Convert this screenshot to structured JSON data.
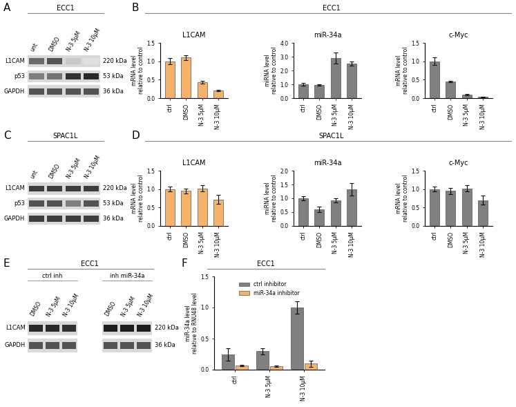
{
  "panels": [
    {
      "letter": "A",
      "header": "ECC1"
    },
    {
      "letter": "B",
      "header": "ECC1"
    },
    {
      "letter": "C",
      "header": "SPAC1L"
    },
    {
      "letter": "D",
      "header": "SPAC1L"
    },
    {
      "letter": "E",
      "header": "ECC1"
    },
    {
      "letter": "F",
      "header": "ECC1"
    }
  ],
  "blots": [
    {
      "panel": "A",
      "groups": [
        {
          "lanes": [
            "unt",
            "DMSO",
            "N-3 5μM",
            "N-3 10μM"
          ],
          "rows": [
            {
              "protein": "L1CAM",
              "size": "220 kDa",
              "intensity": [
                0.6,
                0.7,
                0.15,
                0.05
              ]
            },
            {
              "protein": "p53",
              "size": "53 kDa",
              "intensity": [
                0.5,
                0.55,
                0.85,
                0.9
              ]
            },
            {
              "protein": "GAPDH",
              "size": "36 kDa",
              "intensity": [
                0.7,
                0.7,
                0.7,
                0.7
              ]
            }
          ]
        }
      ]
    },
    {
      "panel": "C",
      "groups": [
        {
          "lanes": [
            "unt",
            "DMSO",
            "N-3 5μM",
            "N-3 10μM"
          ],
          "rows": [
            {
              "protein": "L1CAM",
              "size": "220 kDa",
              "intensity": [
                0.8,
                0.8,
                0.8,
                0.8
              ]
            },
            {
              "protein": "p53",
              "size": "53 kDa",
              "intensity": [
                0.7,
                0.7,
                0.5,
                0.7
              ]
            },
            {
              "protein": "GAPDH",
              "size": "36 kDa",
              "intensity": [
                0.8,
                0.8,
                0.8,
                0.8
              ]
            }
          ]
        }
      ]
    },
    {
      "panel": "E",
      "groups": [
        {
          "name": "ctrl inh",
          "lanes": [
            "DMSO",
            "N-3 5μM",
            "N-3 10μM"
          ],
          "rows": [
            {
              "protein": "L1CAM",
              "size": "220 kDa",
              "intensity": [
                0.9,
                0.9,
                0.85
              ]
            },
            {
              "protein": "GAPDH",
              "size": "36 kDa",
              "intensity": [
                0.7,
                0.7,
                0.7
              ]
            }
          ]
        },
        {
          "name": "inh miR-34a",
          "lanes": [
            "DMSO",
            "N-3 5μM",
            "N-3 10μM"
          ],
          "rows": [
            {
              "protein": "L1CAM",
              "size": "220 kDa",
              "intensity": [
                0.95,
                0.95,
                0.95
              ]
            },
            {
              "protein": "GAPDH",
              "size": "36 kDa",
              "intensity": [
                0.7,
                0.7,
                0.7
              ]
            }
          ]
        }
      ]
    }
  ],
  "chart_data": [
    {
      "panel": "B",
      "type": "bar",
      "title": "L1CAM",
      "y_label": "mRNA level\nrelative to control",
      "categories": [
        "ctrl",
        "DMSO",
        "N-3 5μM",
        "N-3 10μM"
      ],
      "values": [
        1.0,
        1.1,
        0.43,
        0.2
      ],
      "errors": [
        0.08,
        0.06,
        0.03,
        0.02
      ],
      "color": "#f4b26a",
      "ylim": [
        0,
        1.5
      ],
      "yticks": [
        {
          "value": 0,
          "label": "0.0"
        },
        {
          "value": 0.5,
          "label": "0.5"
        },
        {
          "value": 1.0,
          "label": "1.0"
        },
        {
          "value": 1.5,
          "label": "1.5"
        }
      ]
    },
    {
      "panel": "B",
      "type": "bar",
      "title": "miR-34a",
      "y_label": "miRNA level\nrelative to control",
      "categories": [
        "ctrl",
        "DMSO",
        "N-3 5μM",
        "N-3 10μM"
      ],
      "values": [
        1.0,
        0.95,
        2.9,
        2.5
      ],
      "errors": [
        0.1,
        0.03,
        0.4,
        0.15
      ],
      "color": "#808080",
      "ylim": [
        0,
        4.0
      ],
      "yticks": [
        {
          "value": 0,
          "label": "0.0"
        },
        {
          "value": 1.0,
          "label": "1.0"
        },
        {
          "value": 2.0,
          "label": "2.0"
        },
        {
          "value": 3.0,
          "label": "3.0"
        },
        {
          "value": 4.0,
          "label": "4.0"
        }
      ]
    },
    {
      "panel": "B",
      "type": "bar",
      "title": "c-Myc",
      "y_label": "mRNA level\nrelative to control",
      "categories": [
        "ctrl",
        "DMSO",
        "N-3 5μM",
        "N-3 10μM"
      ],
      "values": [
        1.0,
        0.45,
        0.1,
        0.03
      ],
      "errors": [
        0.1,
        0.02,
        0.02,
        0.01
      ],
      "color": "#808080",
      "ylim": [
        0,
        1.5
      ],
      "yticks": [
        {
          "value": 0,
          "label": "0.0"
        },
        {
          "value": 0.5,
          "label": "0.5"
        },
        {
          "value": 1.0,
          "label": "1.0"
        },
        {
          "value": 1.5,
          "label": "1.5"
        }
      ]
    },
    {
      "panel": "D",
      "type": "bar",
      "title": "L1CAM",
      "y_label": "mRNA level\nrelative to control",
      "categories": [
        "ctrl",
        "DMSO",
        "N-3 5μM",
        "N-3 10μM"
      ],
      "values": [
        1.0,
        0.95,
        1.02,
        0.72
      ],
      "errors": [
        0.06,
        0.07,
        0.08,
        0.12
      ],
      "color": "#f4b26a",
      "ylim": [
        0,
        1.5
      ],
      "yticks": [
        {
          "value": 0,
          "label": "0.0"
        },
        {
          "value": 0.5,
          "label": "0.5"
        },
        {
          "value": 1.0,
          "label": "1.0"
        },
        {
          "value": 1.5,
          "label": "1.5"
        }
      ]
    },
    {
      "panel": "D",
      "type": "bar",
      "title": "miR-34a",
      "y_label": "miRNA level\nrelative to control",
      "categories": [
        "ctrl",
        "DMSO",
        "N-3 5μM",
        "N-3 10μM"
      ],
      "values": [
        1.0,
        0.6,
        0.92,
        1.32
      ],
      "errors": [
        0.08,
        0.1,
        0.08,
        0.22
      ],
      "color": "#808080",
      "ylim": [
        0,
        2.0
      ],
      "yticks": [
        {
          "value": 0,
          "label": "0.0"
        },
        {
          "value": 0.5,
          "label": "0.5"
        },
        {
          "value": 1.0,
          "label": "1.0"
        },
        {
          "value": 1.5,
          "label": "1.5"
        },
        {
          "value": 2.0,
          "label": "2.0"
        }
      ]
    },
    {
      "panel": "D",
      "type": "bar",
      "title": "c-Myc",
      "y_label": "mRNA level\nrelative to control",
      "categories": [
        "ctrl",
        "DMSO",
        "N-3 5μM",
        "N-3 10μM"
      ],
      "values": [
        1.0,
        0.95,
        1.02,
        0.7
      ],
      "errors": [
        0.06,
        0.08,
        0.08,
        0.12
      ],
      "color": "#808080",
      "ylim": [
        0,
        1.5
      ],
      "yticks": [
        {
          "value": 0,
          "label": "0.0"
        },
        {
          "value": 0.5,
          "label": "0.5"
        },
        {
          "value": 1.0,
          "label": "1.0"
        },
        {
          "value": 1.5,
          "label": "1.5"
        }
      ]
    },
    {
      "panel": "F",
      "type": "bar",
      "y_label": "miR-34a level\nrelative to RNU48 level",
      "categories": [
        "ctrl",
        "N-3 5μM",
        "N-3 10μM"
      ],
      "series": [
        {
          "name": "ctrl inhibitor",
          "color": "#808080",
          "values": [
            0.25,
            0.3,
            1.0
          ],
          "errors": [
            0.1,
            0.05,
            0.1
          ]
        },
        {
          "name": "miR-34a inhibitor",
          "color": "#f4b26a",
          "values": [
            0.07,
            0.06,
            0.1
          ],
          "errors": [
            0.01,
            0.01,
            0.05
          ]
        }
      ],
      "legend": "upper center",
      "ylim": [
        0,
        1.5
      ],
      "yticks": [
        {
          "value": 0,
          "label": "0.0"
        },
        {
          "value": 0.5,
          "label": "0.5"
        },
        {
          "value": 1.0,
          "label": "1.0"
        },
        {
          "value": 1.5,
          "label": "1.5"
        }
      ]
    }
  ]
}
